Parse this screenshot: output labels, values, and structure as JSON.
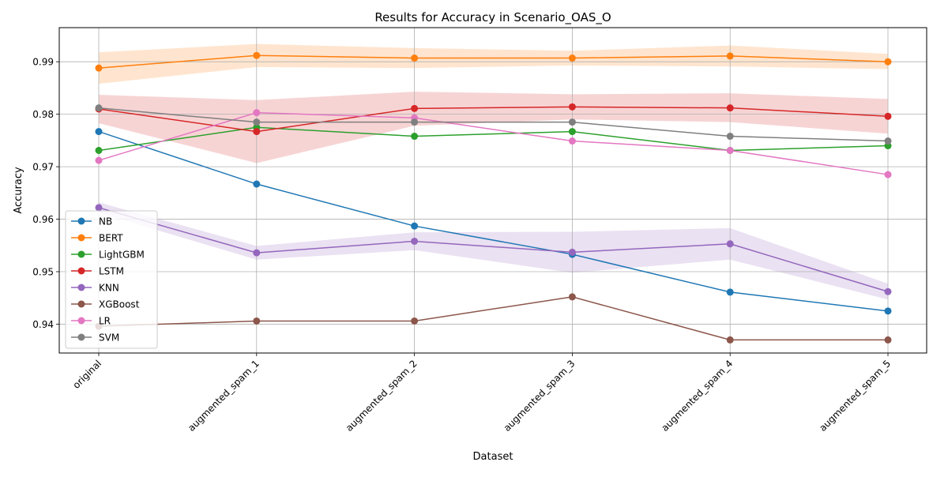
{
  "chart_data": {
    "type": "line",
    "title": "Results for Accuracy in Scenario_OAS_O",
    "xlabel": "Dataset",
    "ylabel": "Accuracy",
    "categories": [
      "original",
      "augmented_spam_1",
      "augmented_spam_2",
      "augmented_spam_3",
      "augmented_spam_4",
      "augmented_spam_5"
    ],
    "ylim": [
      0.9345,
      0.9965
    ],
    "yticks": [
      0.94,
      0.95,
      0.96,
      0.97,
      0.98,
      0.99
    ],
    "ytick_labels": [
      "0.94",
      "0.95",
      "0.96",
      "0.97",
      "0.98",
      "0.99"
    ],
    "grid": true,
    "legend_position": "lower-left",
    "series": [
      {
        "name": "NB",
        "color": "#1f77b4",
        "values": [
          0.9767,
          0.9667,
          0.9587,
          0.9533,
          0.9461,
          0.9425
        ]
      },
      {
        "name": "BERT",
        "color": "#ff7f0e",
        "values": [
          0.9888,
          0.9912,
          0.9907,
          0.9907,
          0.9911,
          0.99
        ],
        "band_lower": [
          0.9858,
          0.989,
          0.9888,
          0.9893,
          0.9891,
          0.9886
        ],
        "band_upper": [
          0.9918,
          0.9934,
          0.9926,
          0.9921,
          0.9931,
          0.9915
        ]
      },
      {
        "name": "LightGBM",
        "color": "#2ca02c",
        "values": [
          0.9731,
          0.9775,
          0.9758,
          0.9767,
          0.9731,
          0.974
        ]
      },
      {
        "name": "LSTM",
        "color": "#d62728",
        "values": [
          0.981,
          0.9767,
          0.9811,
          0.9814,
          0.9812,
          0.9796
        ],
        "band_lower": [
          0.9783,
          0.9707,
          0.9778,
          0.979,
          0.9785,
          0.9763
        ],
        "band_upper": [
          0.9837,
          0.9827,
          0.9843,
          0.9838,
          0.984,
          0.9829
        ]
      },
      {
        "name": "KNN",
        "color": "#9467bd",
        "values": [
          0.9622,
          0.9536,
          0.9558,
          0.9537,
          0.9553,
          0.9462
        ],
        "band_lower": [
          0.9612,
          0.9523,
          0.9541,
          0.9498,
          0.9523,
          0.9447
        ],
        "band_upper": [
          0.9632,
          0.9549,
          0.9575,
          0.9576,
          0.9583,
          0.9477
        ]
      },
      {
        "name": "XGBoost",
        "color": "#8c564b",
        "values": [
          0.9396,
          0.9406,
          0.9406,
          0.9452,
          0.937,
          0.937
        ]
      },
      {
        "name": "LR",
        "color": "#e377c2",
        "values": [
          0.9712,
          0.9803,
          0.9793,
          0.9749,
          0.9731,
          0.9685
        ]
      },
      {
        "name": "SVM",
        "color": "#7f7f7f",
        "values": [
          0.9812,
          0.9785,
          0.9785,
          0.9785,
          0.9758,
          0.9749
        ]
      }
    ]
  }
}
